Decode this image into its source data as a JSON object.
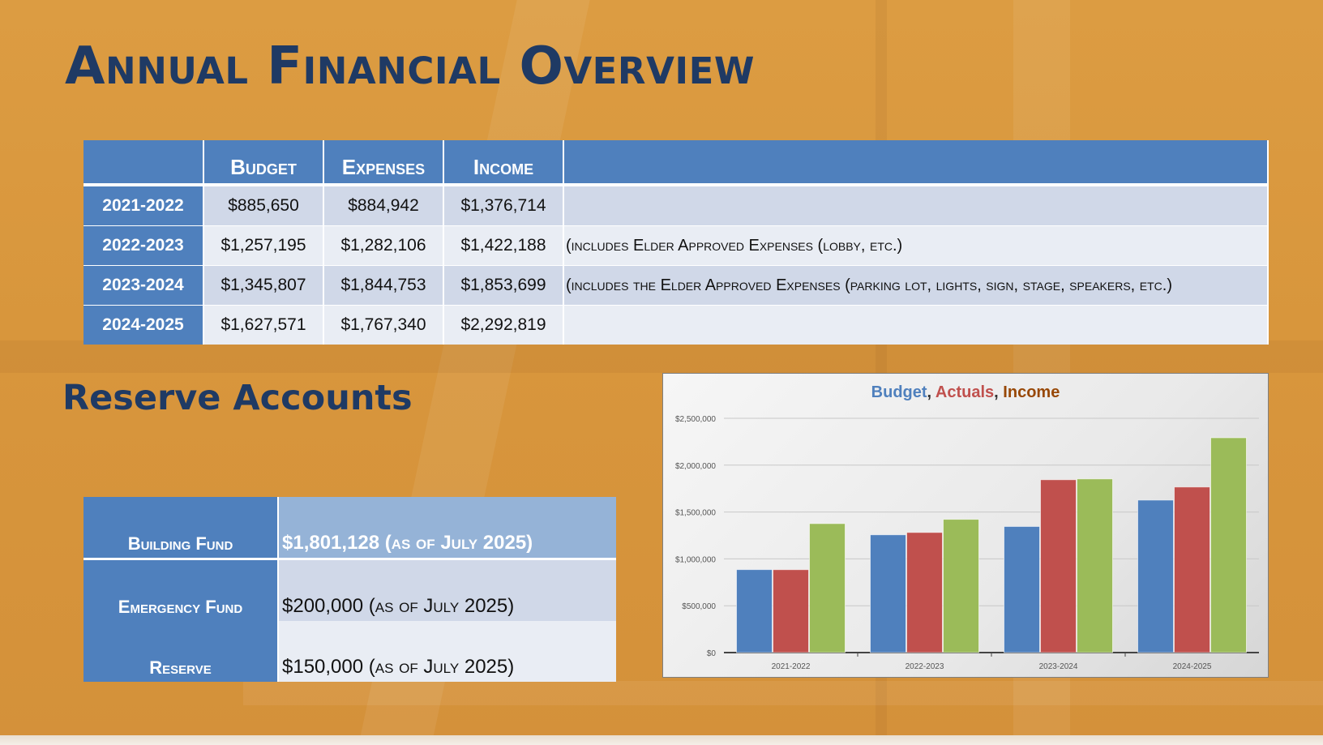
{
  "title": "Annual Financial Overview",
  "table": {
    "headers": [
      "",
      "Budget",
      "Expenses",
      "Income",
      ""
    ],
    "rows": [
      {
        "year": "2021-2022",
        "budget": "$885,650",
        "expenses": "$884,942",
        "income": "$1,376,714",
        "note": ""
      },
      {
        "year": "2022-2023",
        "budget": "$1,257,195",
        "expenses": "$1,282,106",
        "income": "$1,422,188",
        "note": "(includes Elder Approved Expenses (lobby, etc.)"
      },
      {
        "year": "2023-2024",
        "budget": "$1,345,807",
        "expenses": "$1,844,753",
        "income": "$1,853,699",
        "note": "(includes the Elder Approved Expenses (parking lot, lights, sign, stage, speakers, etc.)"
      },
      {
        "year": "2024-2025",
        "budget": "$1,627,571",
        "expenses": "$1,767,340",
        "income": "$2,292,819",
        "note": ""
      }
    ]
  },
  "reserve": {
    "heading": "Reserve Accounts",
    "rows": [
      {
        "label": "Building Fund",
        "value": "$1,801,128 (as of July 2025)"
      },
      {
        "label": "Emergency Fund",
        "value": "$200,000 (as of July 2025)"
      },
      {
        "label": "Reserve",
        "value": "$150,000 (as of July 2025)"
      }
    ]
  },
  "chart_data": {
    "type": "bar",
    "title_parts": {
      "budget": "Budget",
      "actuals": "Actuals",
      "income": "Income",
      "sep": ", "
    },
    "categories": [
      "2021-2022",
      "2022-2023",
      "2023-2024",
      "2024-2025"
    ],
    "series": [
      {
        "key": "budget",
        "values": [
          885650,
          1257195,
          1345807,
          1627571
        ],
        "color": "#4f80bd"
      },
      {
        "key": "actuals",
        "values": [
          884942,
          1282106,
          1844753,
          1767340
        ],
        "color": "#c0504d"
      },
      {
        "key": "income",
        "values": [
          1376714,
          1422188,
          1853699,
          2292819
        ],
        "color": "#9bbb59"
      }
    ],
    "ylim": [
      0,
      2500000
    ],
    "yticks": [
      "$0",
      "$500,000",
      "$1,000,000",
      "$1,500,000",
      "$2,000,000",
      "$2,500,000"
    ],
    "grid": true,
    "legend": "none"
  }
}
